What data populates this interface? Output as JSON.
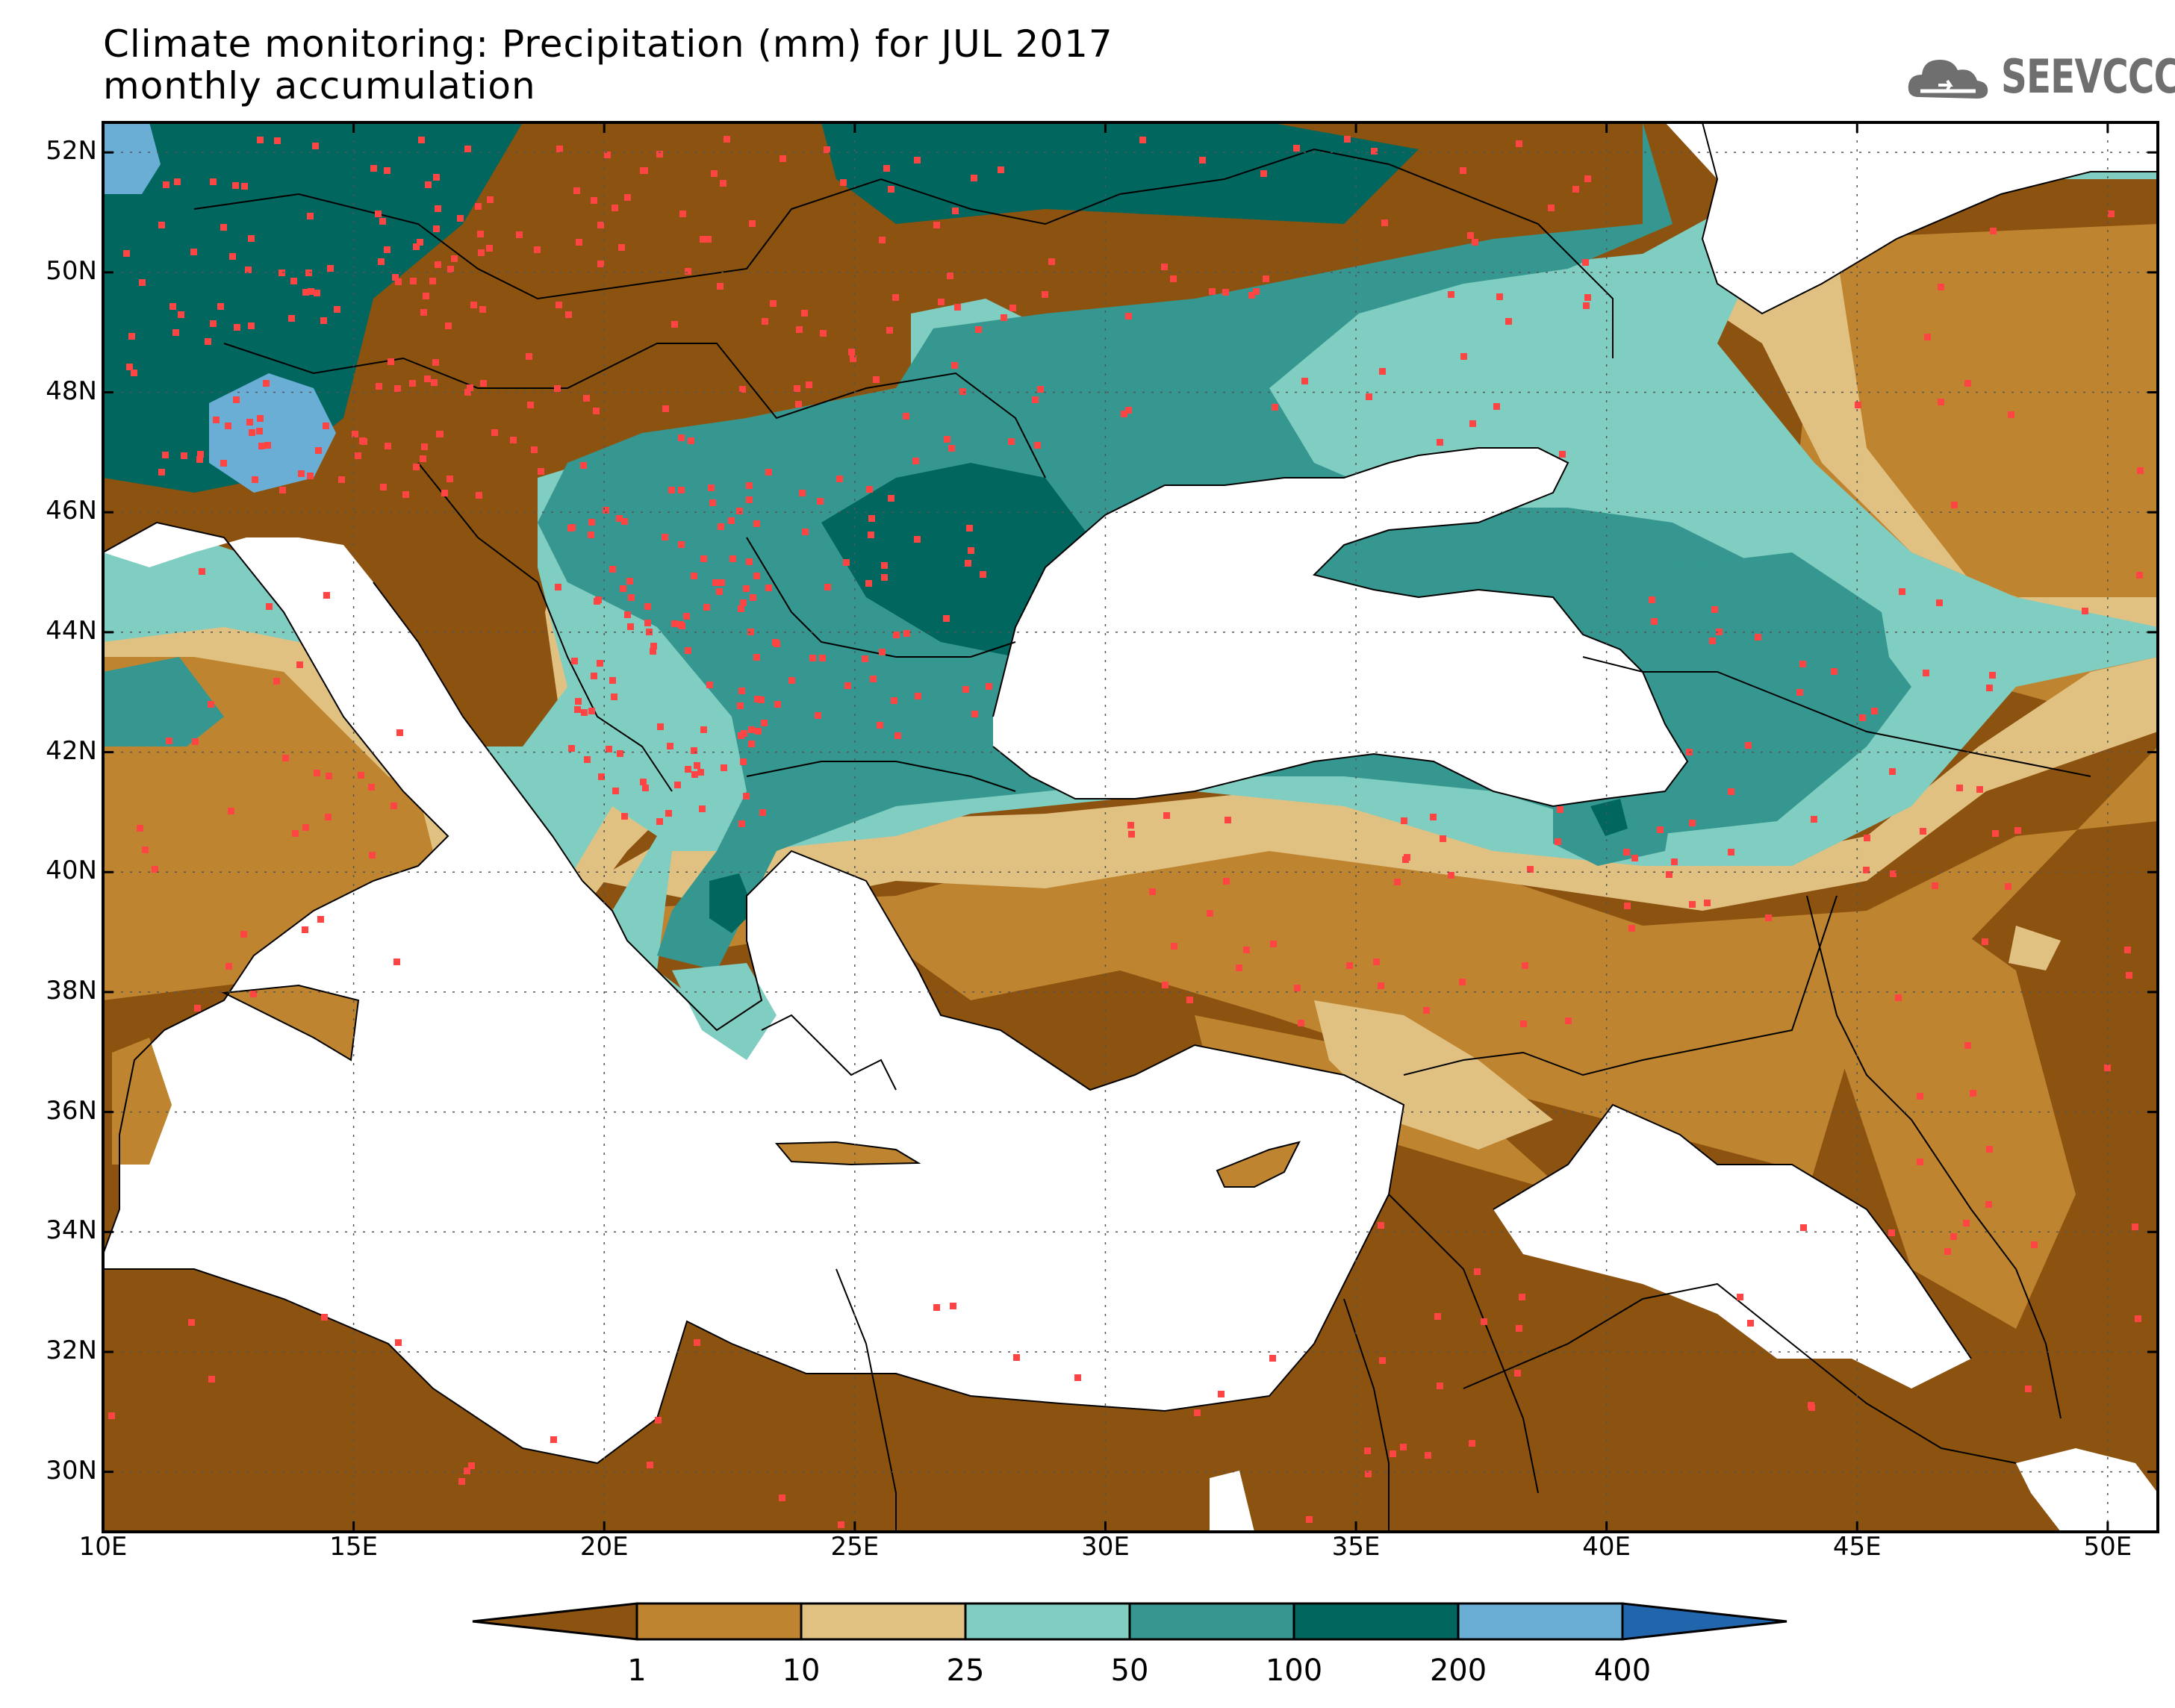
{
  "title": {
    "line1": "Climate monitoring: Precipitation (mm) for JUL 2017",
    "line2": "monthly accumulation"
  },
  "logo": {
    "text": "SEEVCCC",
    "icon": "cloud-icon"
  },
  "map": {
    "extent": {
      "lon": [
        10,
        51
      ],
      "lat": [
        29,
        52.5
      ]
    },
    "y_ticks": [
      "30N",
      "32N",
      "34N",
      "36N",
      "38N",
      "40N",
      "42N",
      "44N",
      "46N",
      "48N",
      "50N",
      "52N"
    ],
    "x_ticks": [
      "10E",
      "15E",
      "20E",
      "25E",
      "30E",
      "35E",
      "40E",
      "45E",
      "50E"
    ],
    "grid": "dotted",
    "station_color": "#ff4444"
  },
  "colorbar": {
    "labels": [
      "1",
      "10",
      "25",
      "50",
      "100",
      "200",
      "400"
    ],
    "colors": [
      "#8c5210",
      "#bf842f",
      "#e0c182",
      "#80cdc1",
      "#35978f",
      "#01665e",
      "#6aaed6",
      "#2166ac"
    ]
  }
}
